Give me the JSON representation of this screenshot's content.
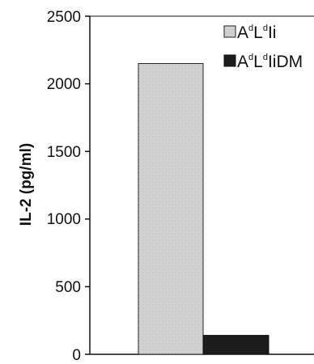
{
  "chart_data": {
    "type": "bar",
    "title": "",
    "xlabel": "",
    "ylabel": "IL-2 (pg/ml)",
    "ylim": [
      0,
      2500
    ],
    "yticks": [
      "0",
      "500",
      "1000",
      "1500",
      "2000",
      "2500"
    ],
    "grid": false,
    "legend_position": "top-right",
    "series": [
      {
        "legend": {
          "base": "A",
          "sup1": "d",
          "mid": "L",
          "sup2": "d",
          "suffix": "Ii"
        },
        "value": 2150,
        "color": "#cfcfcf"
      },
      {
        "legend": {
          "base": "A",
          "sup1": "d",
          "mid": "L",
          "sup2": "d",
          "suffix": "IiDM"
        },
        "value": 140,
        "color": "#1c1c1c"
      }
    ]
  }
}
